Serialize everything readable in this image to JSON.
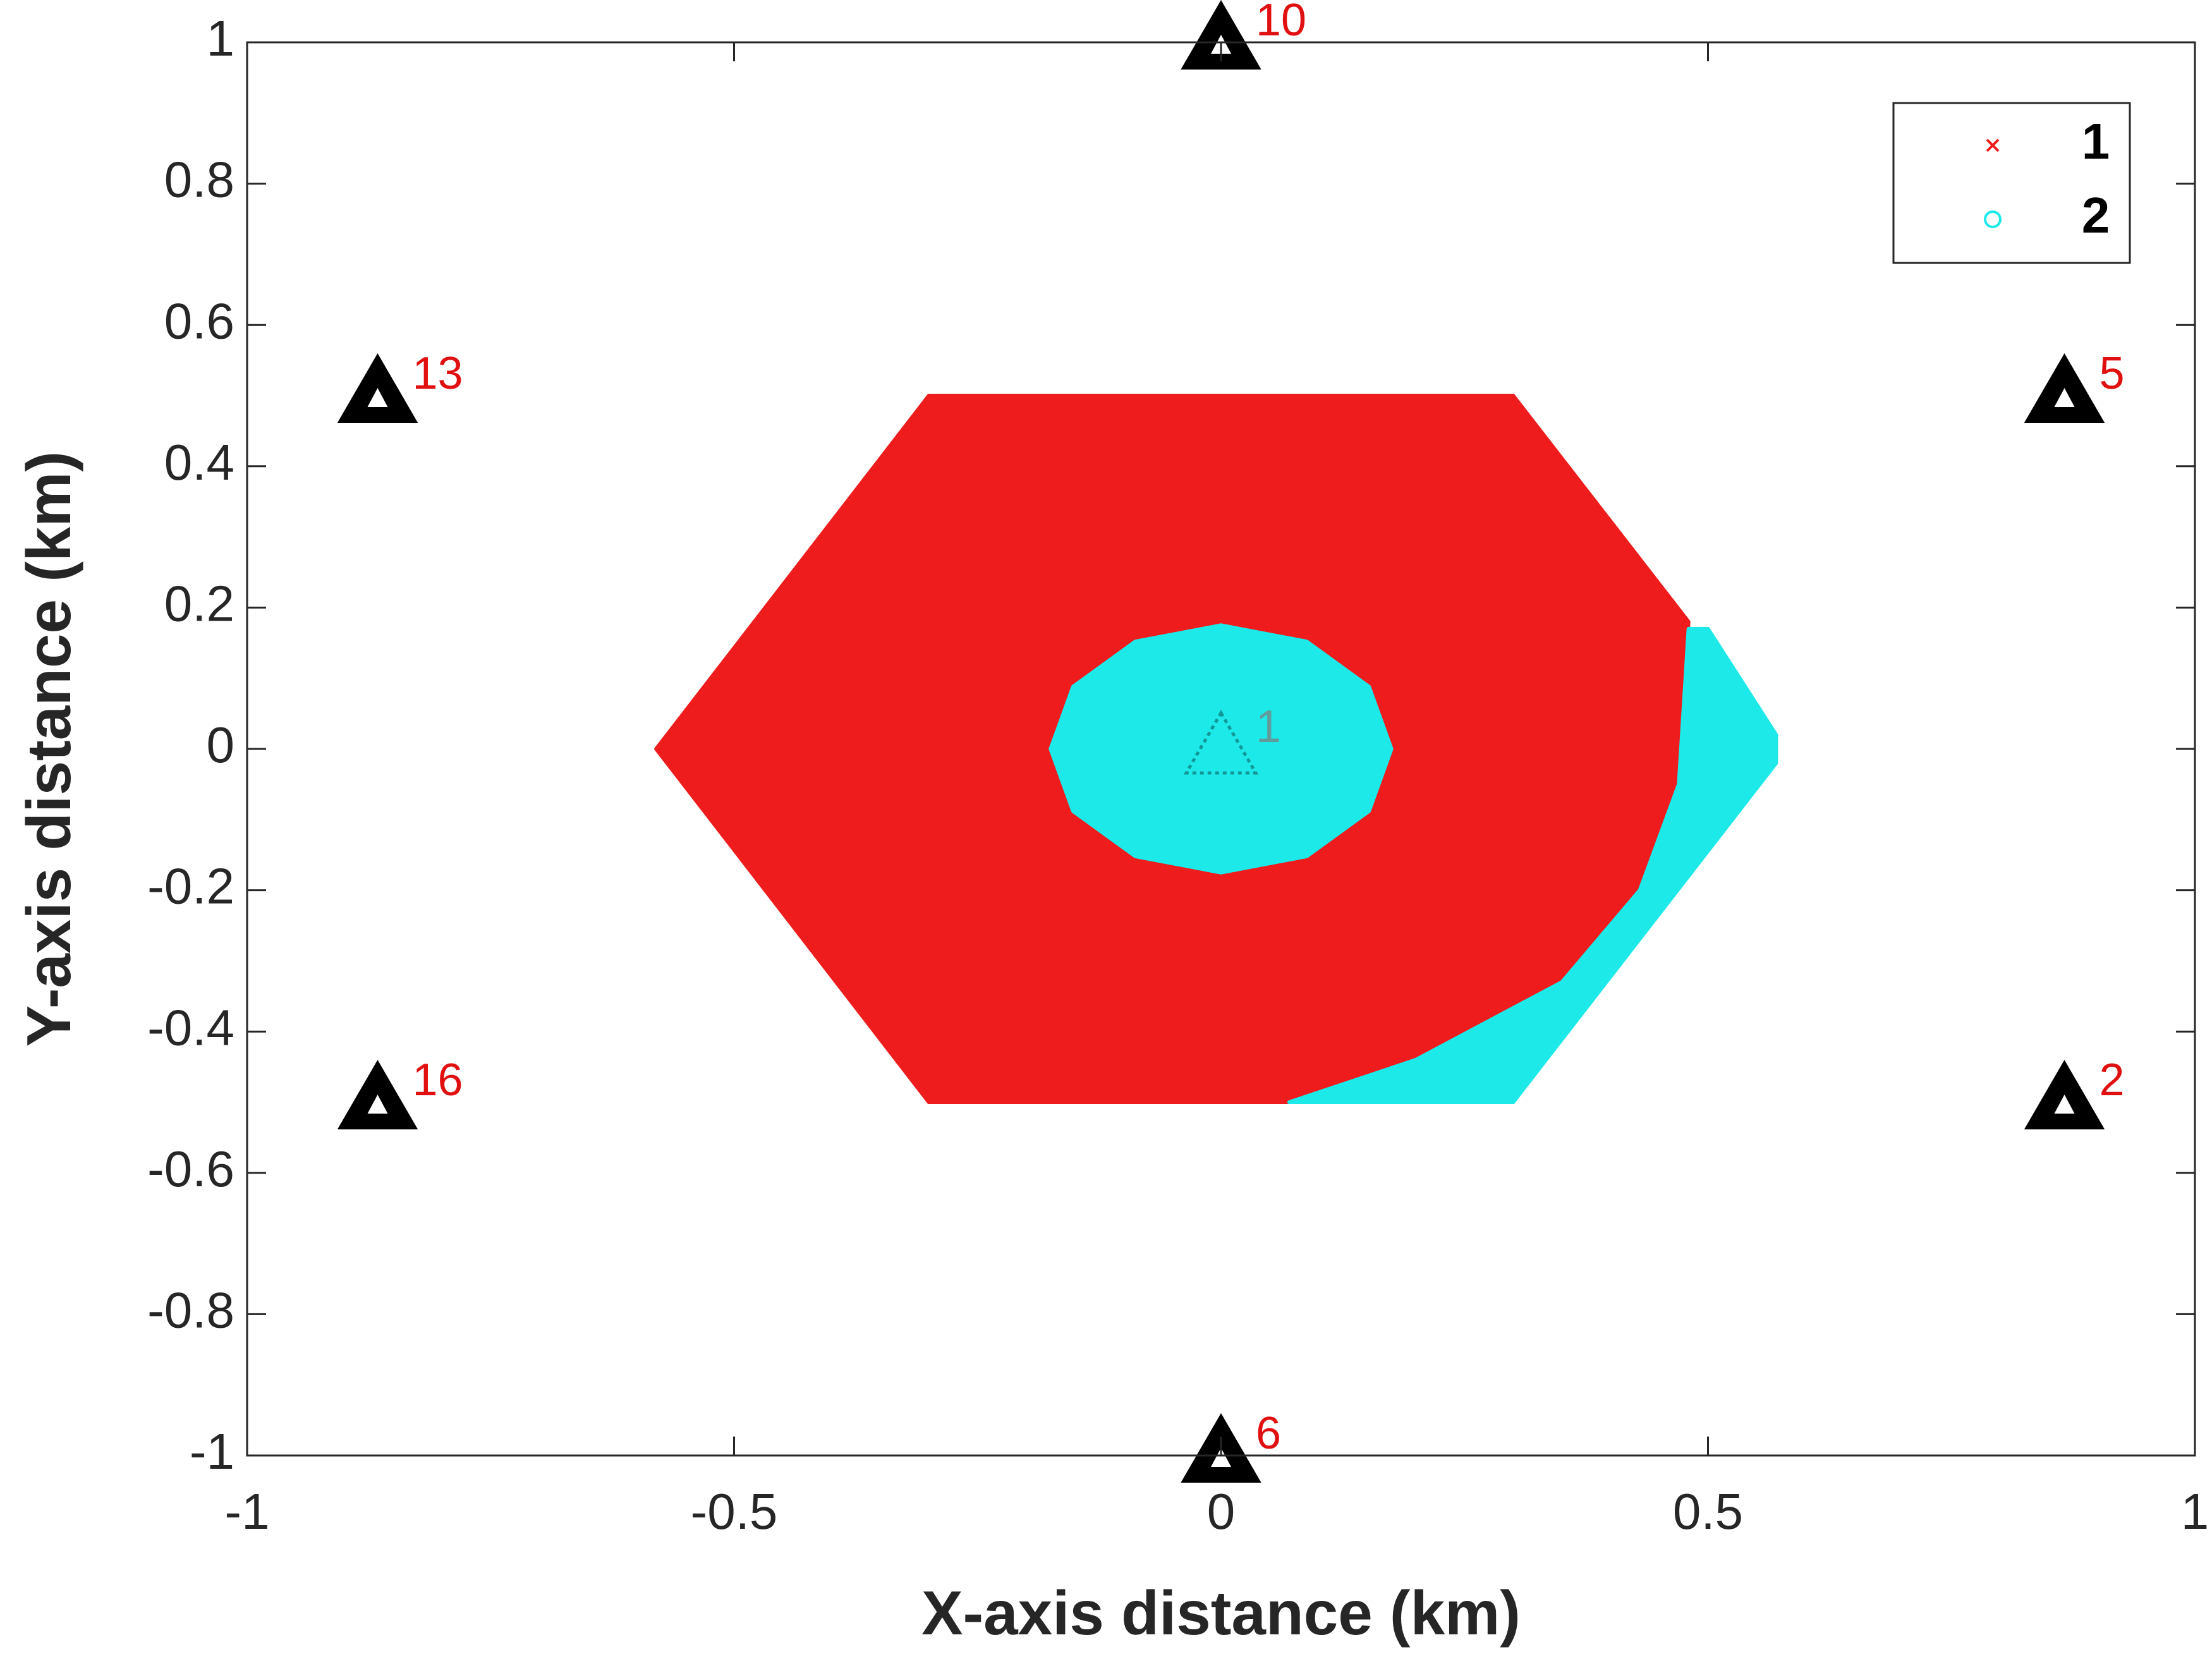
{
  "chart_data": {
    "type": "scatter",
    "xlabel": "X-axis distance (km)",
    "ylabel": "Y-axis distance (km)",
    "xlim": [
      -1,
      1
    ],
    "ylim": [
      -1,
      1
    ],
    "xticks": [
      -1,
      -0.5,
      0,
      0.5,
      1
    ],
    "yticks": [
      -1,
      -0.8,
      -0.6,
      -0.4,
      -0.2,
      0,
      0.2,
      0.4,
      0.6,
      0.8,
      1
    ],
    "legend": "upper right",
    "series": [
      {
        "name": "1",
        "color": "#ee1c1c",
        "marker": "x",
        "x": [
          -0.58,
          -0.3,
          0.3,
          0.48,
          0.47,
          0.43,
          0.35,
          0.2,
          0.07,
          -0.3
        ],
        "y": [
          0,
          0.5,
          0.5,
          0.18,
          -0.05,
          -0.2,
          -0.33,
          -0.44,
          -0.5,
          -0.5
        ]
      },
      {
        "name": "2",
        "color": "#1de9e9",
        "marker": "o",
        "x": [
          0.175,
          0.152,
          0.088,
          0,
          -0.088,
          -0.152,
          -0.175,
          -0.152,
          -0.088,
          0,
          0.088,
          0.152,
          null,
          0.48,
          0.5,
          0.57,
          0.57,
          0.3,
          0.07,
          0.2,
          0.35,
          0.43,
          0.47
        ],
        "y": [
          0,
          0.088,
          0.152,
          0.175,
          0.152,
          0.088,
          0,
          -0.088,
          -0.152,
          -0.175,
          -0.152,
          -0.088,
          null,
          0.17,
          0.17,
          0.02,
          -0.02,
          -0.5,
          -0.5,
          -0.44,
          -0.33,
          -0.2,
          -0.05
        ]
      }
    ],
    "stations": {
      "x": [
        0,
        -0.866,
        0.866,
        -0.866,
        0.866,
        0,
        0
      ],
      "y": [
        1,
        0.5,
        0.5,
        -0.5,
        -0.5,
        -1,
        0
      ],
      "labels": [
        "10",
        "13",
        "5",
        "16",
        "2",
        "6",
        "1"
      ],
      "label_color": "#e01010"
    }
  }
}
